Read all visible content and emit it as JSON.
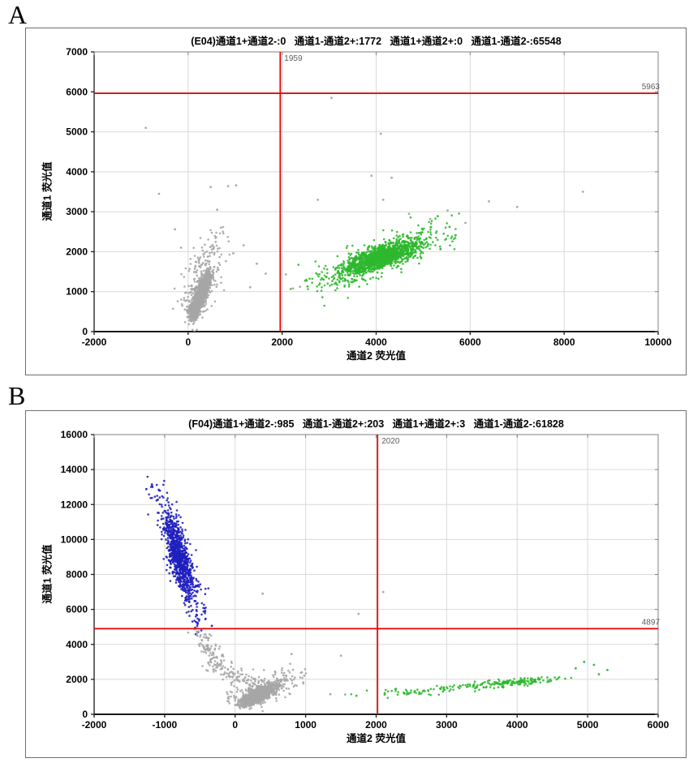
{
  "figure": {
    "panel_a_label": "A",
    "panel_b_label": "B"
  },
  "colors": {
    "gray": "#a6a6a6",
    "green": "#2eb82e",
    "blue": "#1f1fbf",
    "red": "#e60000",
    "grid": "#d9d9d9",
    "frame": "#808080",
    "axis": "#1a1a1a",
    "tick_text": "#000000",
    "threshold_text": "#5c5c5c"
  },
  "chart_data": [
    {
      "type": "scatter",
      "well": "E04",
      "title": "(E04)通道1+通道2-:0   通道1-通道2+:1772   通道1+通道2+:0   通道1-通道2-:65548",
      "xlabel": "通道2 荧光值",
      "ylabel": "通道1 荧光值",
      "xlim": [
        -2000,
        10000
      ],
      "ylim": [
        0,
        7000
      ],
      "x_ticks": [
        -2000,
        0,
        2000,
        4000,
        6000,
        8000,
        10000
      ],
      "y_ticks": [
        0,
        1000,
        2000,
        3000,
        4000,
        5000,
        6000,
        7000
      ],
      "grid": true,
      "threshold_x": 1959,
      "threshold_x_label": "1959",
      "threshold_y": 5963,
      "threshold_y_label": "5963",
      "clusters": [
        {
          "color": "gray",
          "n": 1500,
          "seg": [
            90,
            430,
            470,
            1480
          ],
          "sx": 50,
          "sy": 95,
          "tm": 0.42,
          "ts": 0.25
        },
        {
          "color": "gray",
          "n": 270,
          "seg": [
            0,
            520,
            660,
            2250
          ],
          "sx": 160,
          "sy": 330,
          "tm": 0.45,
          "ts": 0.3
        },
        {
          "color": "green",
          "n": 1250,
          "seg": [
            3350,
            1520,
            4780,
            2160
          ],
          "sx": 180,
          "sy": 115,
          "tm": 0.55,
          "ts": 0.25
        },
        {
          "color": "green",
          "n": 430,
          "seg": [
            2780,
            1210,
            5320,
            2480
          ],
          "sx": 240,
          "sy": 200,
          "tm": 0.5,
          "ts": 0.3
        }
      ],
      "strays": [
        [
          -900,
          5100,
          "gray"
        ],
        [
          -620,
          3450,
          "gray"
        ],
        [
          -280,
          2560,
          "gray"
        ],
        [
          -150,
          2100,
          "gray"
        ],
        [
          480,
          3620,
          "gray"
        ],
        [
          850,
          3640,
          "gray"
        ],
        [
          1020,
          3660,
          "gray"
        ],
        [
          620,
          3050,
          "gray"
        ],
        [
          700,
          2600,
          "gray"
        ],
        [
          1180,
          2160,
          "gray"
        ],
        [
          1320,
          1110,
          "gray"
        ],
        [
          1650,
          1450,
          "gray"
        ],
        [
          2080,
          1430,
          "gray"
        ],
        [
          2230,
          1080,
          "gray"
        ],
        [
          960,
          1960,
          "gray"
        ],
        [
          1460,
          1700,
          "gray"
        ],
        [
          3050,
          5850,
          "gray"
        ],
        [
          4100,
          4950,
          "gray"
        ],
        [
          2760,
          3300,
          "gray"
        ],
        [
          3900,
          3900,
          "gray"
        ],
        [
          4330,
          3850,
          "gray"
        ],
        [
          4150,
          3300,
          "gray"
        ],
        [
          4700,
          2950,
          "gray"
        ],
        [
          5150,
          2820,
          "gray"
        ],
        [
          5520,
          3030,
          "gray"
        ],
        [
          5900,
          2720,
          "gray"
        ],
        [
          6400,
          3260,
          "gray"
        ],
        [
          7000,
          3120,
          "gray"
        ],
        [
          8400,
          3500,
          "gray"
        ],
        [
          2380,
          1120,
          "gray"
        ],
        [
          5560,
          2620,
          "green"
        ],
        [
          5690,
          2410,
          "green"
        ],
        [
          5310,
          2890,
          "green"
        ],
        [
          2540,
          1130,
          "green"
        ]
      ]
    },
    {
      "type": "scatter",
      "well": "F04",
      "title": "(F04)通道1+通道2-:985   通道1-通道2+:203   通道1+通道2+:3   通道1-通道2-:61828",
      "xlabel": "通道2 荧光值",
      "ylabel": "通道1 荧光值",
      "xlim": [
        -2000,
        6000
      ],
      "ylim": [
        0,
        16000
      ],
      "x_ticks": [
        -2000,
        -1000,
        0,
        1000,
        2000,
        3000,
        4000,
        5000,
        6000
      ],
      "y_ticks": [
        0,
        2000,
        4000,
        6000,
        8000,
        10000,
        12000,
        14000,
        16000
      ],
      "grid": true,
      "threshold_x": 2020,
      "threshold_x_label": "2020",
      "threshold_y": 4897,
      "threshold_y_label": "4897",
      "clusters": [
        {
          "color": "blue",
          "n": 760,
          "seg": [
            -950,
            10900,
            -640,
            7100
          ],
          "sx": 55,
          "sy": 620,
          "tm": 0.5,
          "ts": 0.27
        },
        {
          "color": "blue",
          "n": 270,
          "seg": [
            -1070,
            12500,
            -480,
            5450
          ],
          "sx": 95,
          "sy": 520,
          "tm": 0.5,
          "ts": 0.32
        },
        {
          "color": "gray",
          "n": 85,
          "seg": [
            -510,
            4700,
            -230,
            2760
          ],
          "sx": 70,
          "sy": 260,
          "tm": 0.5,
          "ts": 0.35
        },
        {
          "color": "gray",
          "n": 95,
          "seg": [
            -250,
            2860,
            190,
            1660
          ],
          "sx": 110,
          "sy": 220,
          "tm": 0.5,
          "ts": 0.35
        },
        {
          "color": "gray",
          "n": 1400,
          "seg": [
            150,
            620,
            545,
            1680
          ],
          "sx": 62,
          "sy": 110,
          "tm": 0.42,
          "ts": 0.25
        },
        {
          "color": "gray",
          "n": 230,
          "seg": [
            20,
            700,
            790,
            2300
          ],
          "sx": 180,
          "sy": 280,
          "tm": 0.5,
          "ts": 0.3
        },
        {
          "color": "green",
          "n": 150,
          "seg": [
            3350,
            1610,
            4520,
            2060
          ],
          "sx": 170,
          "sy": 78,
          "tm": 0.5,
          "ts": 0.3
        },
        {
          "color": "green",
          "n": 75,
          "seg": [
            2150,
            1160,
            3520,
            1660
          ],
          "sx": 290,
          "sy": 105,
          "tm": 0.5,
          "ts": 0.33
        }
      ],
      "strays": [
        [
          390,
          6900,
          "gray"
        ],
        [
          2100,
          7000,
          "gray"
        ],
        [
          1750,
          5750,
          "gray"
        ],
        [
          1500,
          3360,
          "gray"
        ],
        [
          800,
          3450,
          "gray"
        ],
        [
          1560,
          1130,
          "gray"
        ],
        [
          980,
          2210,
          "gray"
        ],
        [
          1350,
          1150,
          "gray"
        ],
        [
          -1180,
          13150,
          "blue"
        ],
        [
          -1260,
          12880,
          "blue"
        ],
        [
          -330,
          5060,
          "blue"
        ],
        [
          4950,
          3000,
          "green"
        ],
        [
          5090,
          2830,
          "green"
        ],
        [
          5280,
          2530,
          "green"
        ],
        [
          5160,
          2290,
          "green"
        ],
        [
          4830,
          2630,
          "green"
        ],
        [
          2120,
          1130,
          "green"
        ],
        [
          1720,
          1060,
          "green"
        ]
      ]
    }
  ]
}
